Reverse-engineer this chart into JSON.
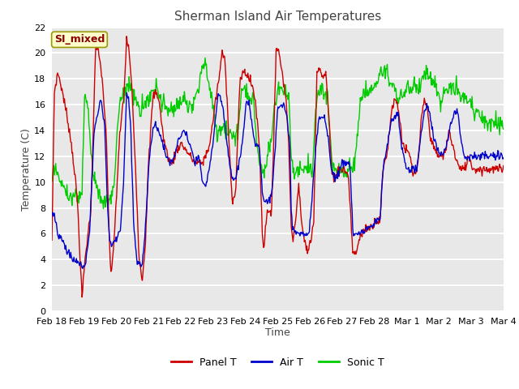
{
  "title": "Sherman Island Air Temperatures",
  "xlabel": "Time",
  "ylabel": "Temperature (C)",
  "annotation": "SI_mixed",
  "ylim": [
    0,
    22
  ],
  "yticks": [
    0,
    2,
    4,
    6,
    8,
    10,
    12,
    14,
    16,
    18,
    20,
    22
  ],
  "xtick_labels": [
    "Feb 18",
    "Feb 19",
    "Feb 20",
    "Feb 21",
    "Feb 22",
    "Feb 23",
    "Feb 24",
    "Feb 25",
    "Feb 26",
    "Feb 27",
    "Feb 28",
    "Mar 1",
    "Mar 2",
    "Mar 3",
    "Mar 4"
  ],
  "legend_labels": [
    "Panel T",
    "Air T",
    "Sonic T"
  ],
  "legend_colors": [
    "#cc0000",
    "#0000cc",
    "#00cc00"
  ],
  "panel_color": "#cc0000",
  "air_color": "#0000cc",
  "sonic_color": "#00cc00",
  "fig_bg_color": "#ffffff",
  "plot_bg_color": "#e8e8e8",
  "grid_color": "#ffffff",
  "title_fontsize": 11,
  "axis_label_fontsize": 9,
  "tick_fontsize": 8
}
